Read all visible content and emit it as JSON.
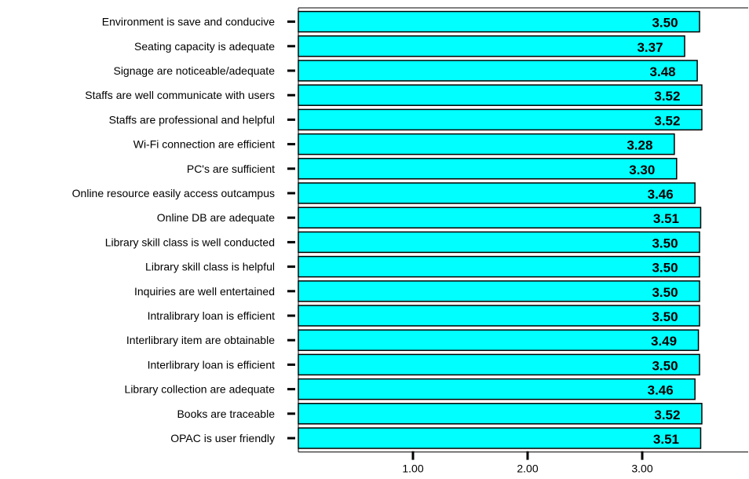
{
  "chart_data": {
    "type": "bar",
    "orientation": "horizontal",
    "categories": [
      "Environment is save and conducive",
      "Seating capacity is adequate",
      "Signage are noticeable/adequate",
      "Staffs are well communicate with users",
      "Staffs are professional and helpful",
      "Wi-Fi connection are efficient",
      "PC's are sufficient",
      "Online resource easily access outcampus",
      "Online DB are adequate",
      "Library skill class is well conducted",
      "Library skill class is helpful",
      "Inquiries are well entertained",
      "Intralibrary loan is efficient",
      "Interlibrary item are obtainable",
      "Interlibrary loan is efficient",
      "Library collection are adequate",
      "Books are traceable",
      "OPAC is user friendly"
    ],
    "values": [
      3.5,
      3.37,
      3.48,
      3.52,
      3.52,
      3.28,
      3.3,
      3.46,
      3.51,
      3.5,
      3.5,
      3.5,
      3.5,
      3.49,
      3.5,
      3.46,
      3.52,
      3.51
    ],
    "value_labels": [
      "3.50",
      "3.37",
      "3.48",
      "3.52",
      "3.52",
      "3.28",
      "3.30",
      "3.46",
      "3.51",
      "3.50",
      "3.50",
      "3.50",
      "3.50",
      "3.49",
      "3.50",
      "3.46",
      "3.52",
      "3.51"
    ],
    "x_ticks": [
      1,
      2,
      3
    ],
    "x_tick_labels": [
      "1.00",
      "2.00",
      "3.00"
    ],
    "xlim": [
      0,
      4
    ],
    "title": "",
    "xlabel": "",
    "ylabel": "",
    "grid": false,
    "bar_color": "#00FFFF",
    "edge_color": "#000000"
  }
}
